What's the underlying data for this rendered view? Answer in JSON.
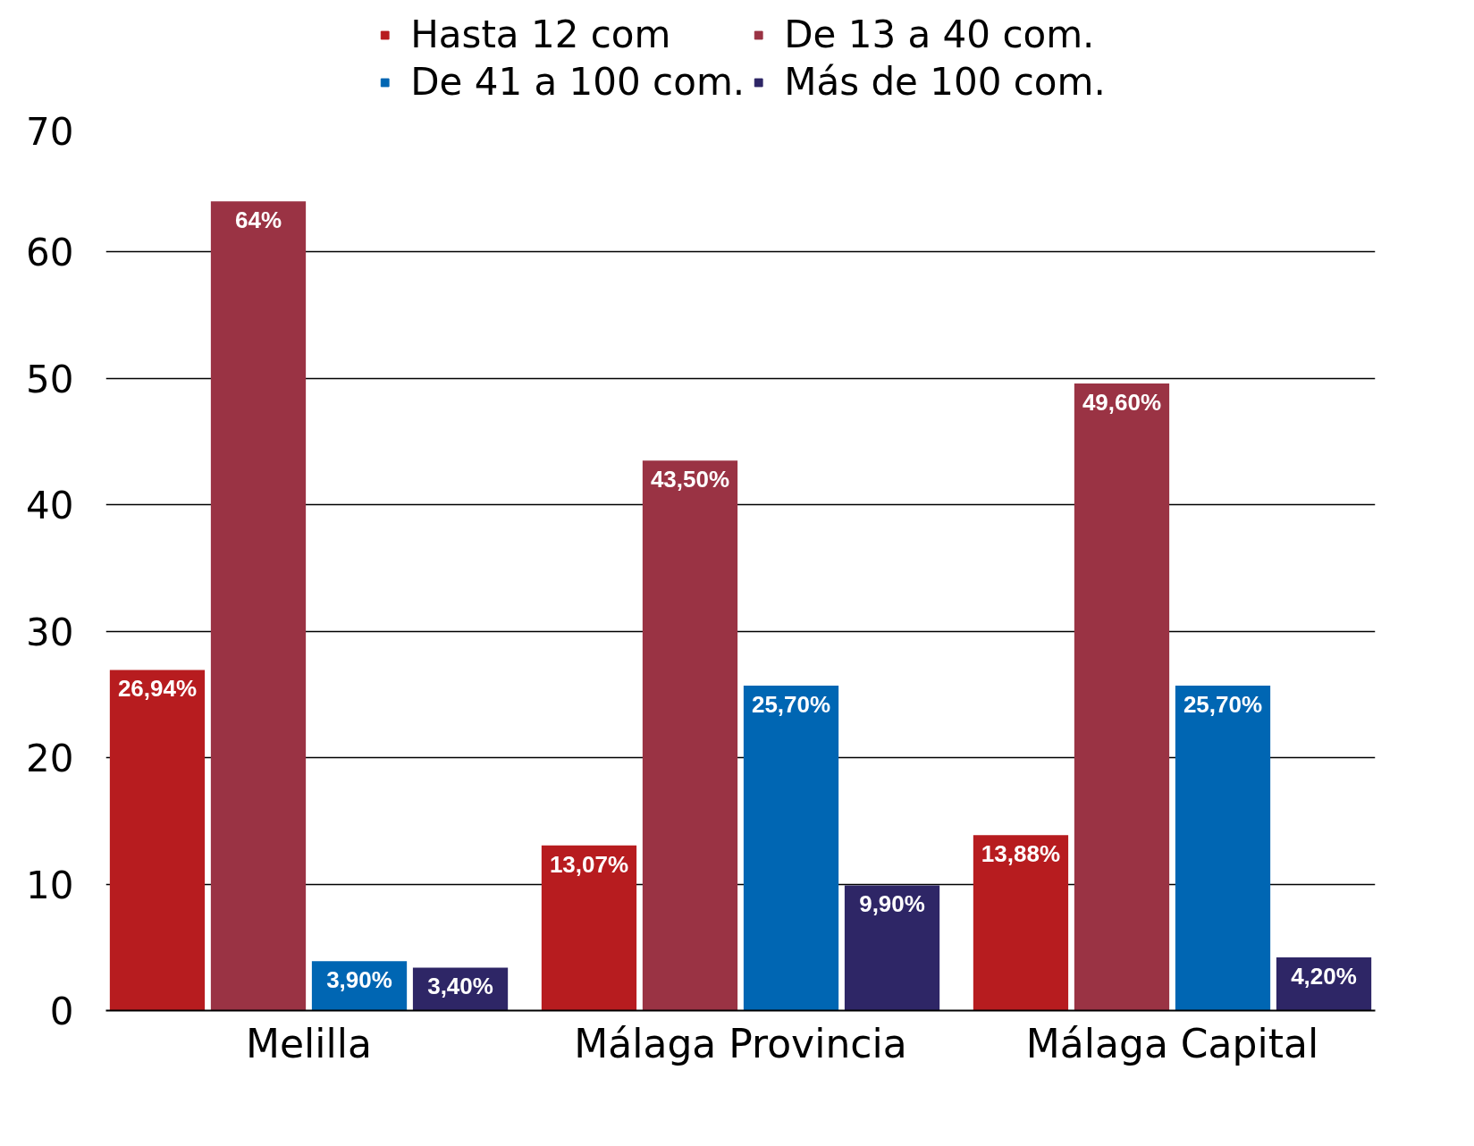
{
  "chart_data": {
    "type": "bar",
    "categories": [
      "Melilla",
      "Málaga Provincia",
      "Málaga Capital"
    ],
    "series": [
      {
        "name": "Hasta 12 com",
        "color": "#b71c1f",
        "values": [
          26.94,
          13.07,
          13.88
        ],
        "value_labels": [
          "26,94%",
          "13,07%",
          "13,88%"
        ]
      },
      {
        "name": "De 13 a 40 com.",
        "color": "#9a3344",
        "values": [
          64,
          43.5,
          49.6
        ],
        "value_labels": [
          "64%",
          "43,50%",
          "49,60%"
        ]
      },
      {
        "name": "De 41 a 100 com.",
        "color": "#0066b3",
        "values": [
          3.9,
          25.7,
          25.7
        ],
        "value_labels": [
          "3,90%",
          "25,70%",
          "25,70%"
        ]
      },
      {
        "name": "Más de 100 com.",
        "color": "#2e2666",
        "values": [
          3.4,
          9.9,
          4.2
        ],
        "value_labels": [
          "3,40%",
          "9,90%",
          "4,20%"
        ]
      }
    ],
    "ylim": [
      0,
      70
    ],
    "yticks": [
      0,
      10,
      20,
      30,
      40,
      50,
      60,
      70
    ],
    "grid": "y",
    "legend": "top"
  }
}
